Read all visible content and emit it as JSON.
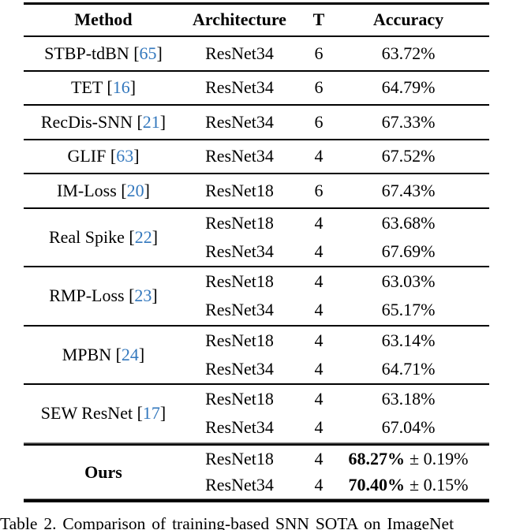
{
  "colors": {
    "background": "#ffffff",
    "text": "#000000",
    "rule": "#000000",
    "citation_blue": "#3277bd"
  },
  "table": {
    "columns": [
      "Method",
      "Architecture",
      "T",
      "Accuracy"
    ],
    "cite_open": "[",
    "cite_close": "]",
    "groups": [
      {
        "method": "STBP-tdBN",
        "cite": "65",
        "rows": [
          {
            "arch": "ResNet34",
            "t": "6",
            "acc": "63.72%"
          }
        ]
      },
      {
        "method": "TET",
        "cite": "16",
        "rows": [
          {
            "arch": "ResNet34",
            "t": "6",
            "acc": "64.79%"
          }
        ]
      },
      {
        "method": "RecDis-SNN",
        "cite": "21",
        "rows": [
          {
            "arch": "ResNet34",
            "t": "6",
            "acc": "67.33%"
          }
        ]
      },
      {
        "method": "GLIF",
        "cite": "63",
        "rows": [
          {
            "arch": "ResNet34",
            "t": "4",
            "acc": "67.52%"
          }
        ]
      },
      {
        "method": "IM-Loss",
        "cite": "20",
        "rows": [
          {
            "arch": "ResNet18",
            "t": "6",
            "acc": "67.43%"
          }
        ]
      },
      {
        "method": "Real Spike",
        "cite": "22",
        "rows": [
          {
            "arch": "ResNet18",
            "t": "4",
            "acc": "63.68%"
          },
          {
            "arch": "ResNet34",
            "t": "4",
            "acc": "67.69%"
          }
        ]
      },
      {
        "method": "RMP-Loss",
        "cite": "23",
        "rows": [
          {
            "arch": "ResNet18",
            "t": "4",
            "acc": "63.03%"
          },
          {
            "arch": "ResNet34",
            "t": "4",
            "acc": "65.17%"
          }
        ]
      },
      {
        "method": "MPBN",
        "cite": "24",
        "rows": [
          {
            "arch": "ResNet18",
            "t": "4",
            "acc": "63.14%"
          },
          {
            "arch": "ResNet34",
            "t": "4",
            "acc": "64.71%"
          }
        ]
      },
      {
        "method": "SEW ResNet",
        "cite": "17",
        "rows": [
          {
            "arch": "ResNet18",
            "t": "4",
            "acc": "63.18%"
          },
          {
            "arch": "ResNet34",
            "t": "4",
            "acc": "67.04%"
          }
        ]
      },
      {
        "method": "Ours",
        "cite": null,
        "emphasis": true,
        "double_rule_above": true,
        "rows": [
          {
            "arch": "ResNet18",
            "t": "4",
            "acc_bold": "68.27%",
            "acc_rest": "± 0.19%"
          },
          {
            "arch": "ResNet34",
            "t": "4",
            "acc_bold": "70.40%",
            "acc_rest": "± 0.15%"
          }
        ]
      }
    ]
  },
  "caption": "Table 2.  Comparison of training-based SNN SOTA on ImageNet"
}
